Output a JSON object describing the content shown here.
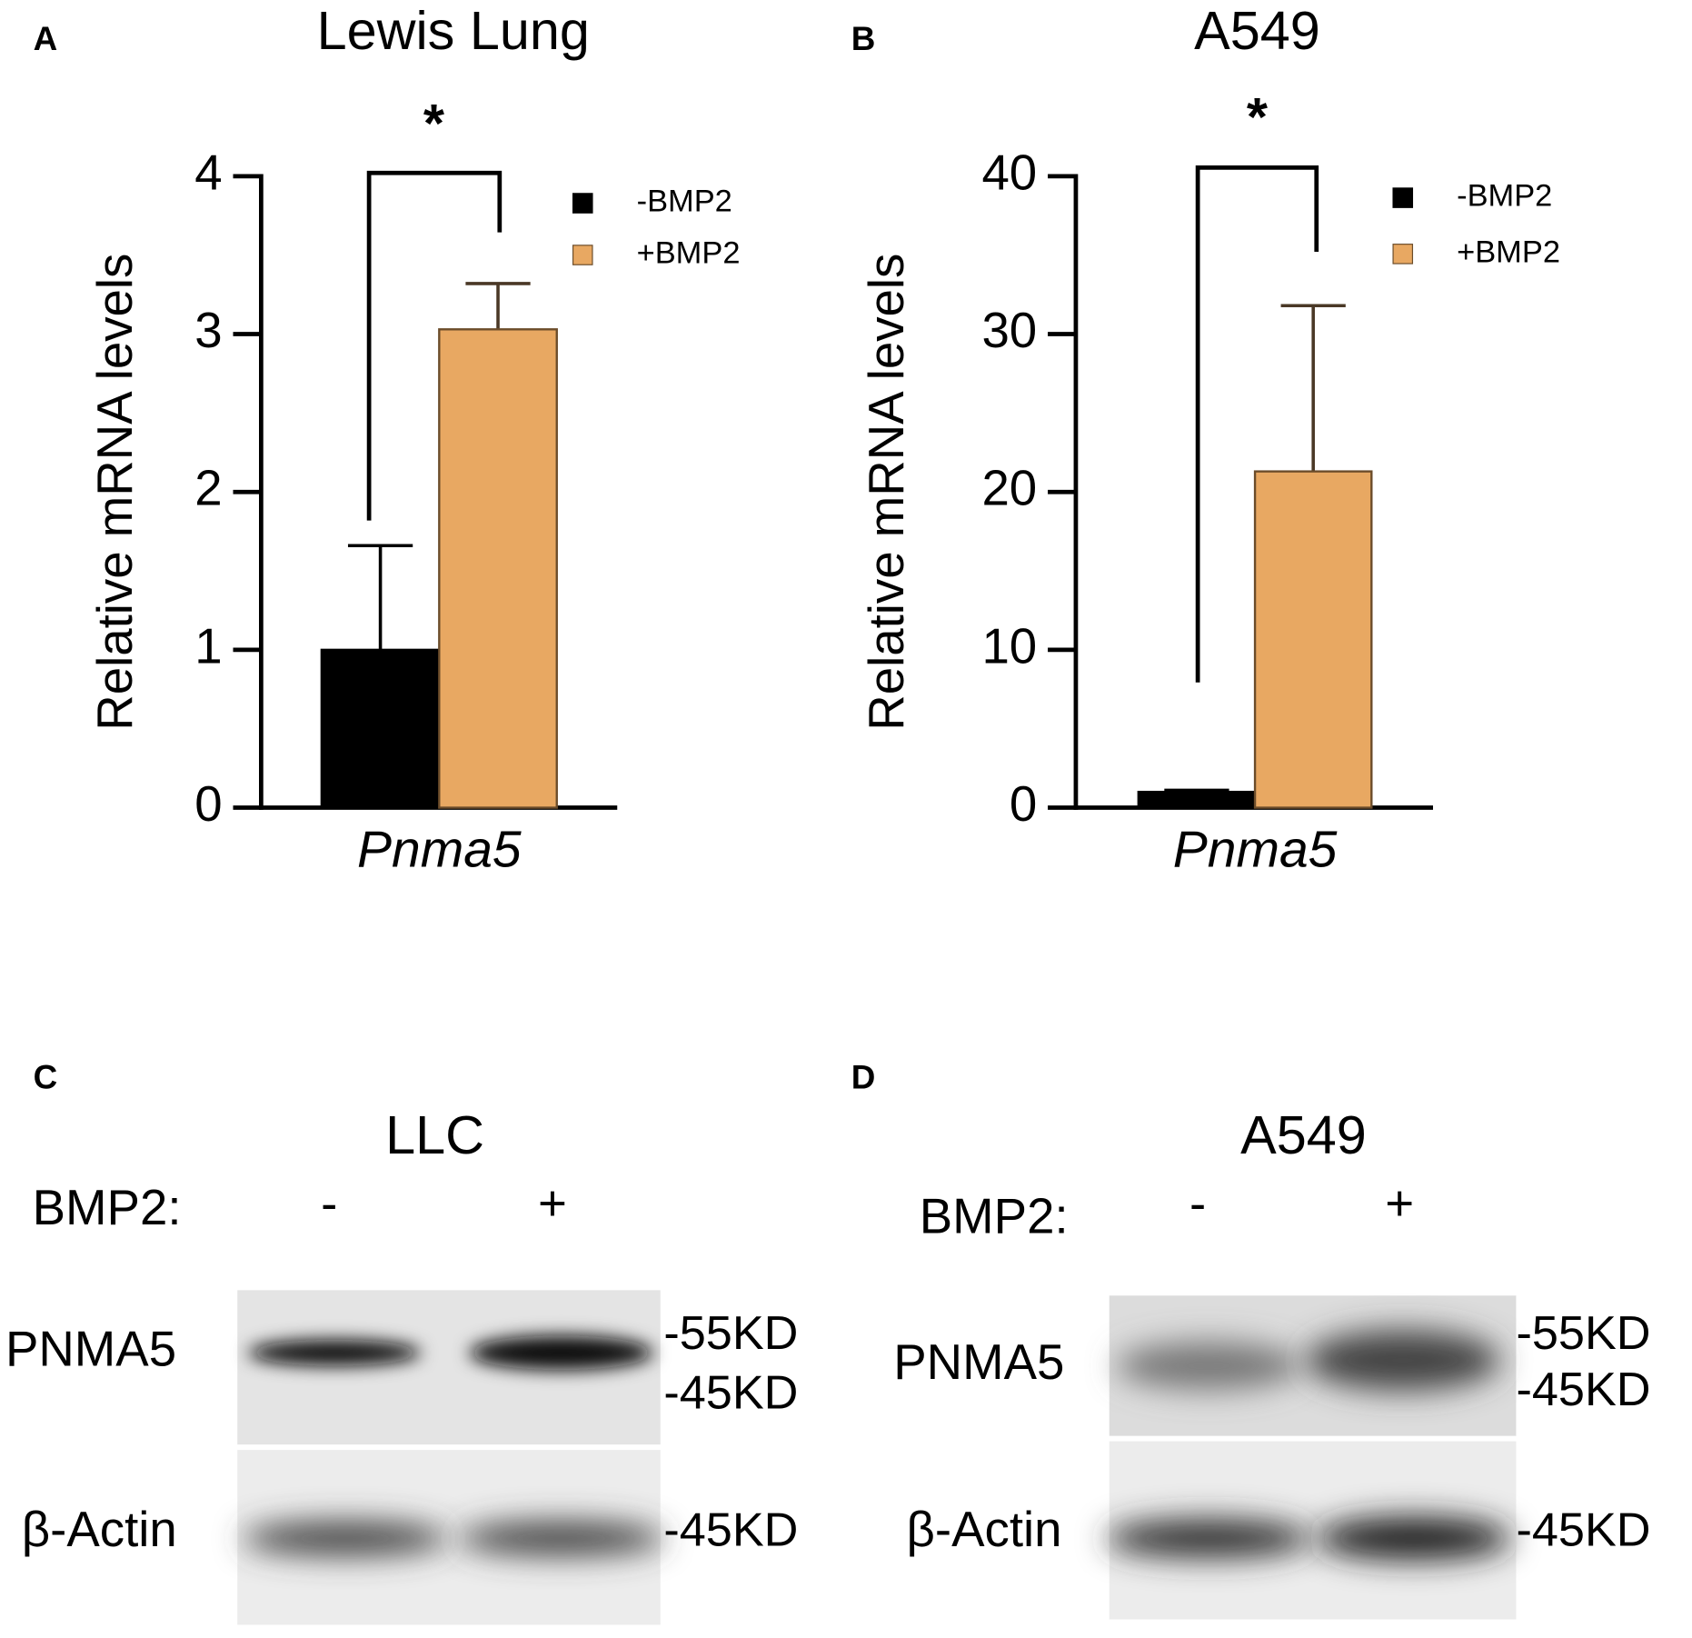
{
  "chart_data": [
    {
      "type": "bar",
      "panel": "A",
      "title": "Lewis Lung",
      "ylabel": "Relative mRNA levels",
      "categories": [
        "Pnma5"
      ],
      "series": [
        {
          "name": "-BMP2",
          "color": "#000000",
          "values": [
            1
          ],
          "errors": [
            0.66
          ]
        },
        {
          "name": "+BMP2",
          "color": "#e8a862",
          "values": [
            3.03
          ],
          "errors": [
            0.29
          ]
        }
      ],
      "ylim": [
        0,
        4
      ],
      "yticks": [
        0,
        1,
        2,
        3,
        4
      ],
      "annotations": [
        "*"
      ]
    },
    {
      "type": "bar",
      "panel": "B",
      "title": "A549",
      "ylabel": "Relative mRNA levels",
      "categories": [
        "Pnma5"
      ],
      "series": [
        {
          "name": "-BMP2",
          "color": "#000000",
          "values": [
            1
          ],
          "errors": [
            0.1
          ]
        },
        {
          "name": "+BMP2",
          "color": "#e8a862",
          "values": [
            21.3
          ],
          "errors": [
            10.5
          ]
        }
      ],
      "ylim": [
        0,
        40
      ],
      "yticks": [
        0,
        10,
        20,
        30,
        40
      ],
      "annotations": [
        "*"
      ]
    }
  ],
  "blots": [
    {
      "panel": "C",
      "title": "LLC",
      "treatment_label": "BMP2:",
      "lanes": [
        "-",
        "+"
      ],
      "rows": [
        {
          "label": "PNMA5",
          "markers": [
            "-55KD",
            "-45KD"
          ]
        },
        {
          "label": "β-Actin",
          "markers": [
            "-45KD"
          ]
        }
      ]
    },
    {
      "panel": "D",
      "title": "A549",
      "treatment_label": "BMP2:",
      "lanes": [
        "-",
        "+"
      ],
      "rows": [
        {
          "label": "PNMA5",
          "markers": [
            "-55KD",
            "-45KD"
          ]
        },
        {
          "label": "β-Actin",
          "markers": [
            "-45KD"
          ]
        }
      ]
    }
  ]
}
